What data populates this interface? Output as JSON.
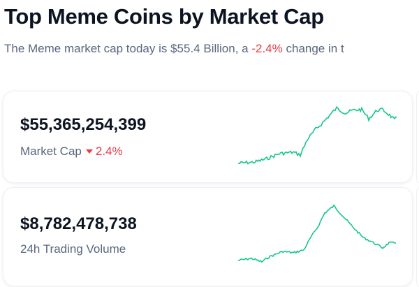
{
  "title": "Top Meme Coins by Market Cap",
  "subtitle": {
    "prefix": "The Meme market cap today is $55.4 Billion, a ",
    "change": "-2.4%",
    "suffix": " change in t"
  },
  "cards": [
    {
      "value": "$55,365,254,399",
      "label": "Market Cap",
      "change": "2.4%",
      "direction": "down",
      "color": "#16c784"
    },
    {
      "value": "$8,782,478,738",
      "label": "24h Trading Volume",
      "color": "#16c784"
    }
  ],
  "colors": {
    "negative": "#ea3943",
    "sparkline": "#16c784"
  }
}
